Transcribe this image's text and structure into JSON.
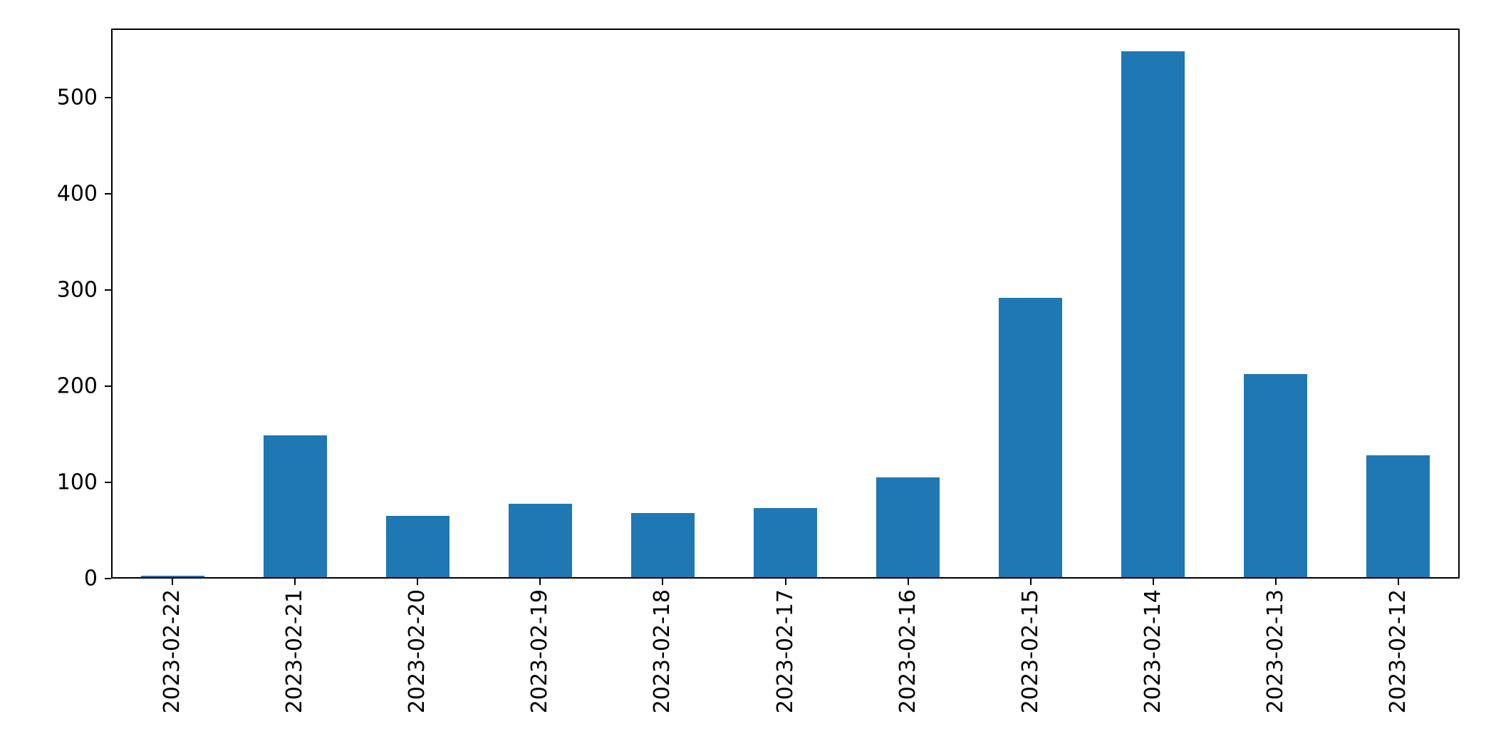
{
  "chart_data": {
    "type": "bar",
    "title": "",
    "xlabel": "",
    "ylabel": "",
    "categories": [
      "2023-02-22",
      "2023-02-21",
      "2023-02-20",
      "2023-02-19",
      "2023-02-18",
      "2023-02-17",
      "2023-02-16",
      "2023-02-15",
      "2023-02-14",
      "2023-02-13",
      "2023-02-12"
    ],
    "values": [
      3,
      149,
      65,
      78,
      68,
      73,
      105,
      292,
      548,
      213,
      128
    ],
    "yticks": [
      0,
      100,
      200,
      300,
      400,
      500
    ],
    "ylim": [
      0,
      572
    ],
    "bar_color": "#1f77b4",
    "axis_color": "#000000",
    "background": "#ffffff",
    "grid": false,
    "legend": null,
    "x_tick_rotation": 90,
    "bar_width_fraction": 0.52
  }
}
